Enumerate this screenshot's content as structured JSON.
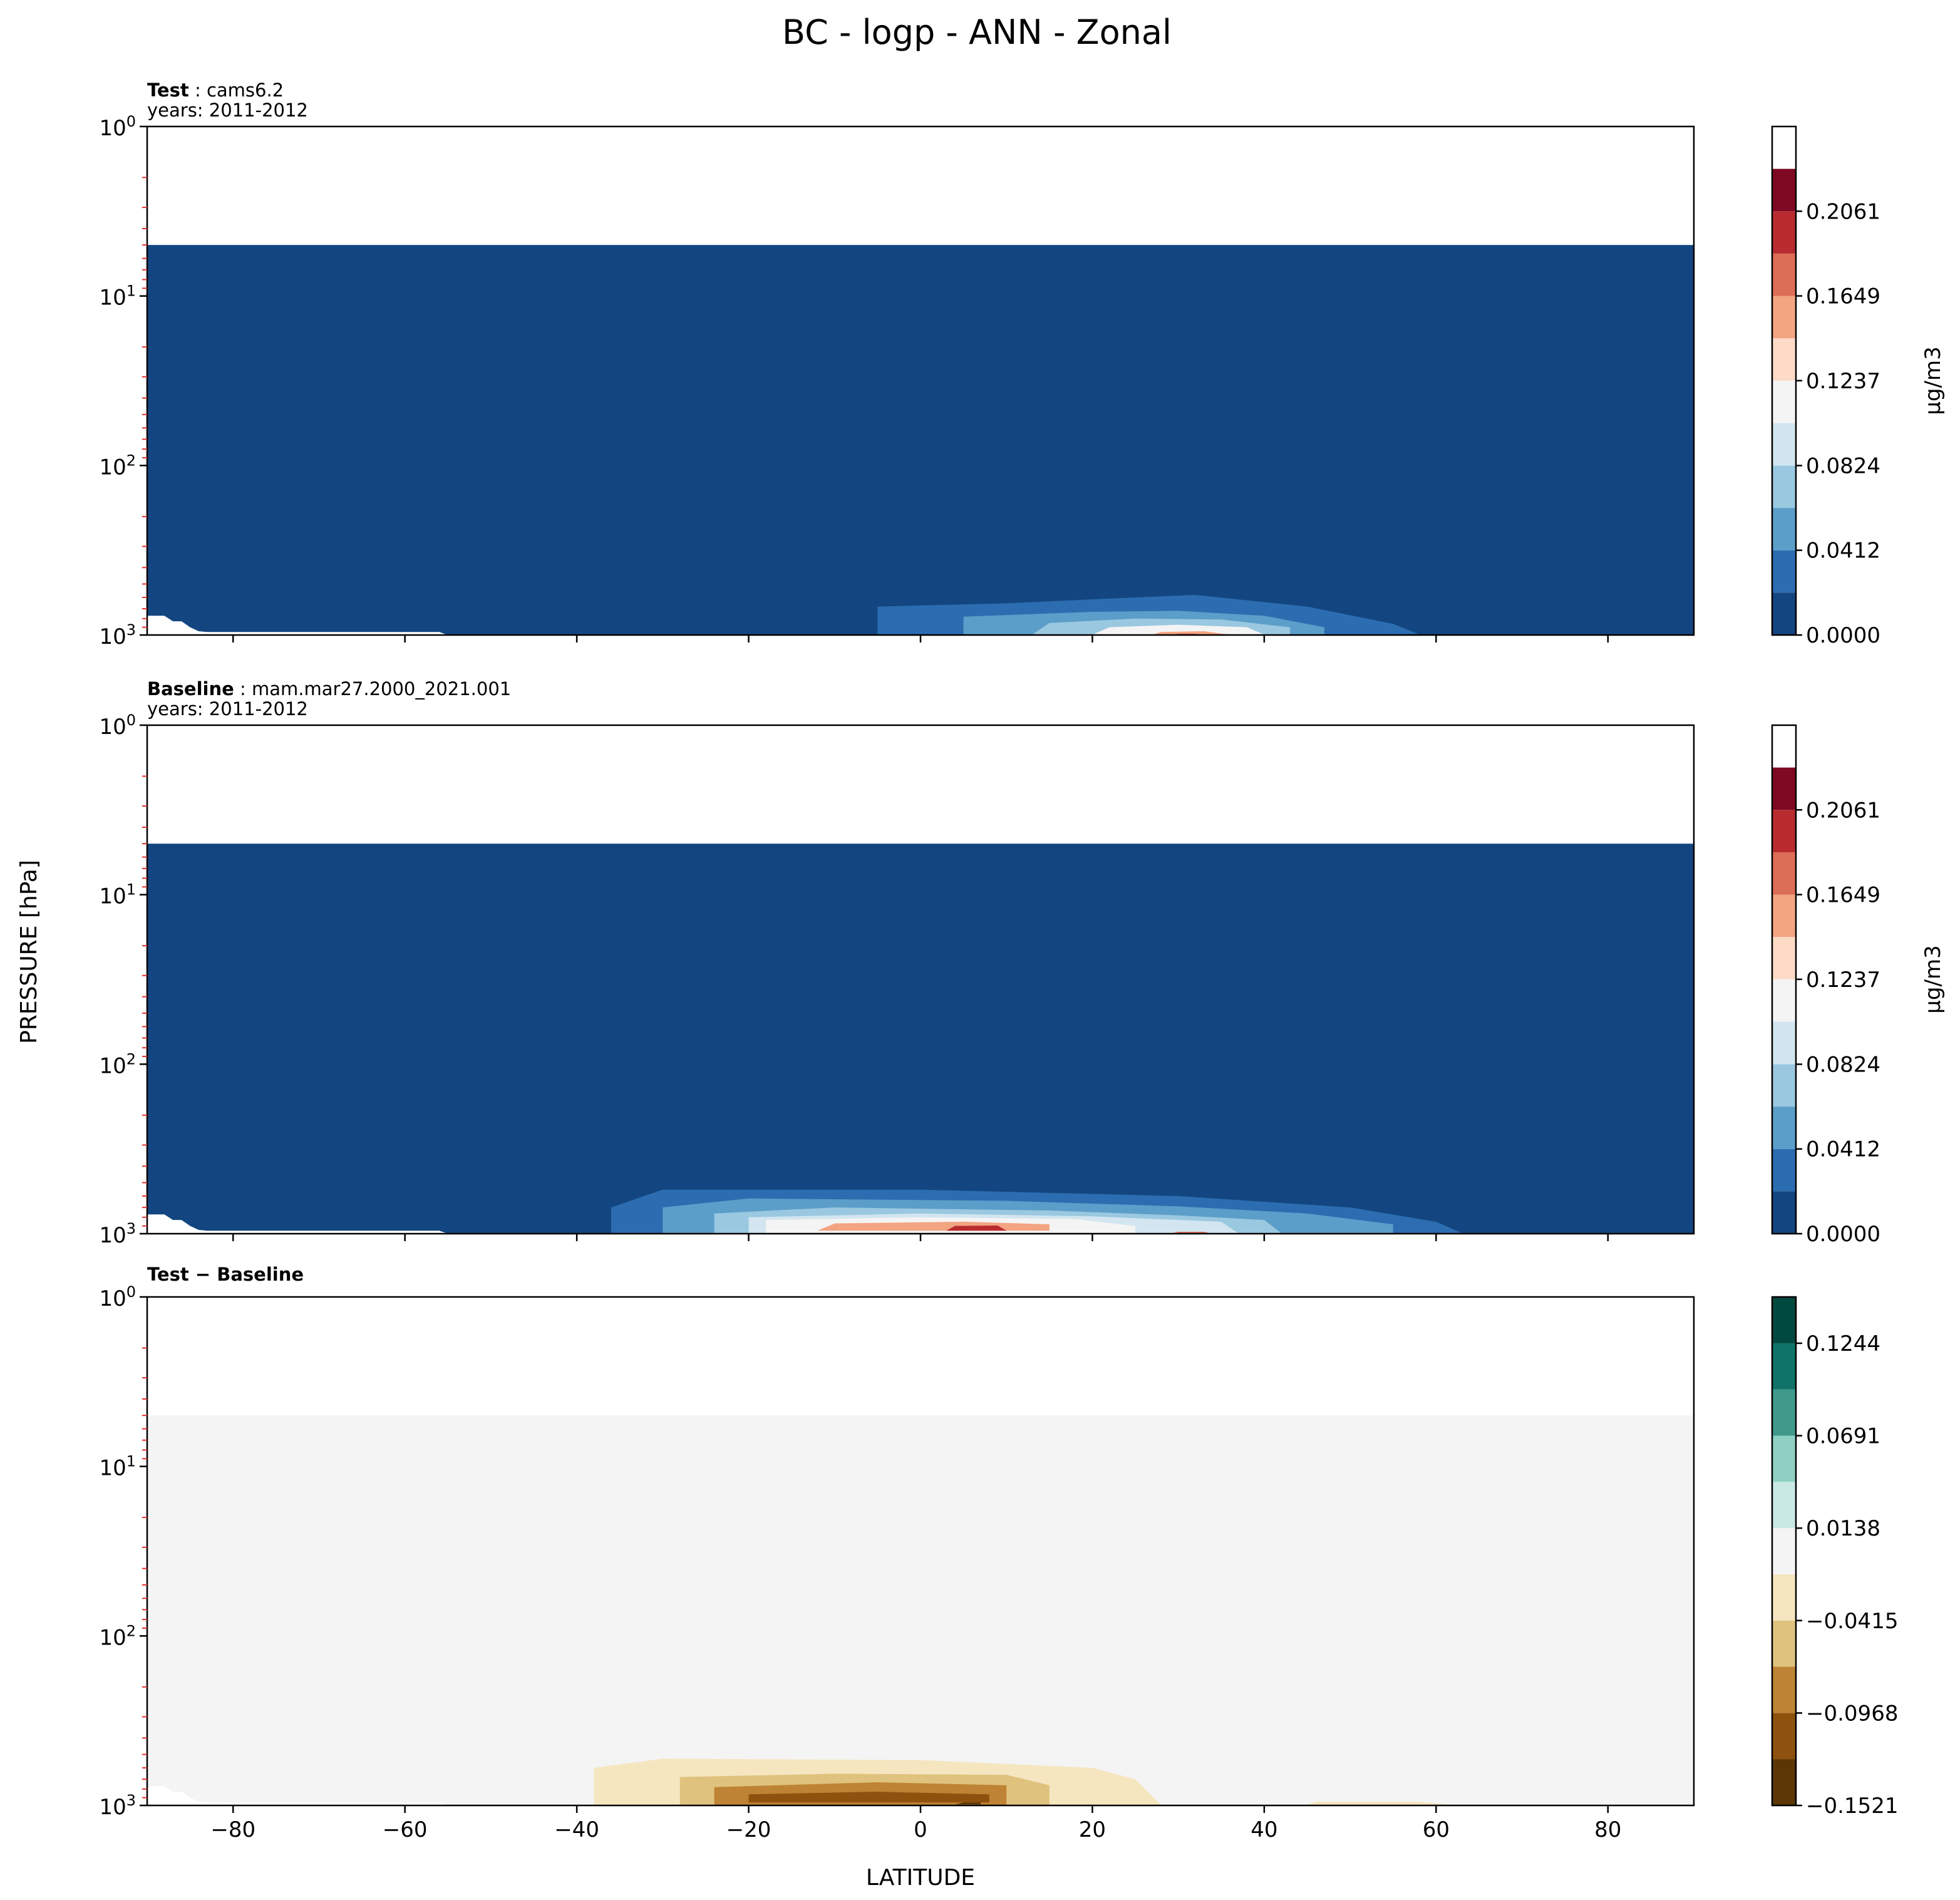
{
  "figure": {
    "title": "BC - logp - ANN - Zonal",
    "xlabel": "LATITUDE",
    "ylabel": "PRESSURE [hPa]"
  },
  "chart_data": [
    {
      "type": "heatmap",
      "panel_label_bold": "Test",
      "panel_label_rest": ": cams6.2",
      "subtitle": "years: 2011-2012",
      "x_ticks": [
        -80,
        -60,
        -40,
        -20,
        0,
        20,
        40,
        60,
        80
      ],
      "xlim": [
        -90,
        90
      ],
      "y_ticks": [
        "10^0",
        "10^1",
        "10^2",
        "10^3"
      ],
      "ylim": [
        1000,
        1
      ],
      "y_scale": "log",
      "show_xtick_labels": false,
      "colorbar_label": "μg/m3",
      "colorbar_ticks": [
        "0.0000",
        "0.0412",
        "0.0824",
        "0.1237",
        "0.1649",
        "0.2061"
      ],
      "colorbar_levels": [
        0.0,
        0.0206,
        0.0412,
        0.0618,
        0.0824,
        0.1031,
        0.1237,
        0.1443,
        0.1649,
        0.1855,
        0.2061,
        0.2267,
        0.2473
      ],
      "colorbar_colors": [
        "#134680",
        "#2c6db1",
        "#5b9ec9",
        "#9ac8e0",
        "#d2e5f0",
        "#f4f4f4",
        "#fddbc7",
        "#f3a481",
        "#dc6d57",
        "#b82b2e",
        "#7f0823"
      ],
      "background_color": "#134680",
      "data_top_pressure_hPa": 5,
      "contours": [
        {
          "level": 1,
          "color": "#2c6db1",
          "points": [
            [
              -5,
              990
            ],
            [
              -5,
              680
            ],
            [
              10,
              650
            ],
            [
              25,
              600
            ],
            [
              32,
              580
            ],
            [
              45,
              680
            ],
            [
              55,
              860
            ],
            [
              58,
              990
            ]
          ]
        },
        {
          "level": 2,
          "color": "#5b9ec9",
          "points": [
            [
              5,
              995
            ],
            [
              5,
              780
            ],
            [
              20,
              730
            ],
            [
              30,
              720
            ],
            [
              40,
              770
            ],
            [
              47,
              900
            ],
            [
              47,
              995
            ]
          ]
        },
        {
          "level": 3,
          "color": "#9ac8e0",
          "points": [
            [
              13,
              995
            ],
            [
              15,
              850
            ],
            [
              25,
              800
            ],
            [
              35,
              810
            ],
            [
              43,
              900
            ],
            [
              43,
              995
            ]
          ]
        },
        {
          "level": 5,
          "color": "#f4f4f4",
          "points": [
            [
              20,
              995
            ],
            [
              22,
              900
            ],
            [
              30,
              870
            ],
            [
              38,
              900
            ],
            [
              40,
              995
            ]
          ]
        },
        {
          "level": 7,
          "color": "#f3a481",
          "points": [
            [
              27,
              995
            ],
            [
              28,
              960
            ],
            [
              33,
              950
            ],
            [
              36,
              995
            ]
          ]
        },
        {
          "level": 9,
          "color": "#b82b2e",
          "points": [
            [
              29,
              1000
            ],
            [
              30,
              985
            ],
            [
              32,
              985
            ],
            [
              33,
              1000
            ]
          ]
        }
      ]
    },
    {
      "type": "heatmap",
      "panel_label_bold": "Baseline",
      "panel_label_rest": ": mam.mar27.2000_2021.001",
      "subtitle": "years: 2011-2012",
      "x_ticks": [
        -80,
        -60,
        -40,
        -20,
        0,
        20,
        40,
        60,
        80
      ],
      "xlim": [
        -90,
        90
      ],
      "y_ticks": [
        "10^0",
        "10^1",
        "10^2",
        "10^3"
      ],
      "ylim": [
        1000,
        1
      ],
      "y_scale": "log",
      "show_xtick_labels": false,
      "colorbar_label": "μg/m3",
      "colorbar_ticks": [
        "0.0000",
        "0.0412",
        "0.0824",
        "0.1237",
        "0.1649",
        "0.2061"
      ],
      "colorbar_levels": [
        0.0,
        0.0206,
        0.0412,
        0.0618,
        0.0824,
        0.1031,
        0.1237,
        0.1443,
        0.1649,
        0.1855,
        0.2061,
        0.2267,
        0.2473
      ],
      "colorbar_colors": [
        "#134680",
        "#2c6db1",
        "#5b9ec9",
        "#9ac8e0",
        "#d2e5f0",
        "#f4f4f4",
        "#fddbc7",
        "#f3a481",
        "#dc6d57",
        "#b82b2e",
        "#7f0823"
      ],
      "background_color": "#134680",
      "data_top_pressure_hPa": 5,
      "contours": [
        {
          "level": 1,
          "color": "#2c6db1",
          "points": [
            [
              -36,
              990
            ],
            [
              -36,
              700
            ],
            [
              -30,
              550
            ],
            [
              0,
              550
            ],
            [
              30,
              600
            ],
            [
              50,
              700
            ],
            [
              60,
              850
            ],
            [
              63,
              990
            ]
          ]
        },
        {
          "level": 2,
          "color": "#5b9ec9",
          "points": [
            [
              -30,
              995
            ],
            [
              -30,
              700
            ],
            [
              -20,
              620
            ],
            [
              10,
              640
            ],
            [
              30,
              690
            ],
            [
              45,
              760
            ],
            [
              55,
              880
            ],
            [
              55,
              995
            ]
          ]
        },
        {
          "level": 3,
          "color": "#9ac8e0",
          "points": [
            [
              -24,
              995
            ],
            [
              -24,
              760
            ],
            [
              -10,
              700
            ],
            [
              15,
              730
            ],
            [
              30,
              780
            ],
            [
              40,
              830
            ],
            [
              42,
              995
            ]
          ]
        },
        {
          "level": 4,
          "color": "#d2e5f0",
          "points": [
            [
              -20,
              995
            ],
            [
              -20,
              800
            ],
            [
              0,
              760
            ],
            [
              20,
              790
            ],
            [
              35,
              850
            ],
            [
              37,
              995
            ]
          ]
        },
        {
          "level": 5,
          "color": "#f4f4f4",
          "points": [
            [
              -18,
              995
            ],
            [
              -18,
              830
            ],
            [
              0,
              800
            ],
            [
              18,
              820
            ],
            [
              25,
              900
            ],
            [
              25,
              995
            ]
          ]
        },
        {
          "level": 7,
          "color": "#f3a481",
          "points": [
            [
              -12,
              960
            ],
            [
              -10,
              870
            ],
            [
              5,
              850
            ],
            [
              15,
              880
            ],
            [
              15,
              960
            ]
          ]
        },
        {
          "level": 9,
          "color": "#b82b2e",
          "points": [
            [
              3,
              960
            ],
            [
              4,
              900
            ],
            [
              9,
              895
            ],
            [
              10,
              960
            ]
          ]
        },
        {
          "level": 8,
          "color": "#dc6d57",
          "points": [
            [
              29,
              1000
            ],
            [
              30,
              975
            ],
            [
              33,
              975
            ],
            [
              34,
              1000
            ]
          ]
        }
      ]
    },
    {
      "type": "heatmap",
      "panel_label_bold": "Test − Baseline",
      "panel_label_rest": "",
      "subtitle": "",
      "x_ticks": [
        -80,
        -60,
        -40,
        -20,
        0,
        20,
        40,
        60,
        80
      ],
      "xlim": [
        -90,
        90
      ],
      "y_ticks": [
        "10^0",
        "10^1",
        "10^2",
        "10^3"
      ],
      "ylim": [
        1000,
        1
      ],
      "y_scale": "log",
      "show_xtick_labels": true,
      "colorbar_label": "",
      "colorbar_ticks": [
        "−0.1521",
        "−0.0968",
        "−0.0415",
        "0.0138",
        "0.0691",
        "0.1244"
      ],
      "colorbar_levels": [
        -0.1521,
        -0.1244,
        -0.0968,
        -0.0691,
        -0.0415,
        -0.0138,
        0.0138,
        0.0415,
        0.0691,
        0.0968,
        0.1244,
        0.1521
      ],
      "colorbar_colors": [
        "#5a3705",
        "#8f520e",
        "#be8334",
        "#dfc27d",
        "#f5e6c0",
        "#f4f4f4",
        "#c9eae4",
        "#8ed0c2",
        "#3f9a8c",
        "#107369",
        "#00493f"
      ],
      "background_color": "#f4f4f4",
      "data_top_pressure_hPa": 5,
      "contours": [
        {
          "level": 4,
          "color": "#f5e6c0",
          "points": [
            [
              -38,
              995
            ],
            [
              -38,
              600
            ],
            [
              -30,
              530
            ],
            [
              0,
              540
            ],
            [
              20,
              600
            ],
            [
              25,
              700
            ],
            [
              28,
              995
            ]
          ]
        },
        {
          "level": 3,
          "color": "#dfc27d",
          "points": [
            [
              -28,
              995
            ],
            [
              -28,
              680
            ],
            [
              -10,
              650
            ],
            [
              10,
              660
            ],
            [
              15,
              760
            ],
            [
              15,
              995
            ]
          ]
        },
        {
          "level": 2,
          "color": "#be8334",
          "points": [
            [
              -24,
              995
            ],
            [
              -24,
              780
            ],
            [
              -5,
              730
            ],
            [
              10,
              760
            ],
            [
              10,
              995
            ]
          ]
        },
        {
          "level": 1,
          "color": "#8f520e",
          "points": [
            [
              -20,
              960
            ],
            [
              -20,
              860
            ],
            [
              -5,
              830
            ],
            [
              8,
              860
            ],
            [
              8,
              960
            ]
          ]
        },
        {
          "level": 0,
          "color": "#5a3705",
          "points": [
            [
              4,
              985
            ],
            [
              5,
              960
            ],
            [
              7,
              960
            ],
            [
              7,
              985
            ]
          ]
        },
        {
          "level": 4,
          "color": "#f5e6c0",
          "points": [
            [
              45,
              995
            ],
            [
              46,
              950
            ],
            [
              58,
              950
            ],
            [
              62,
              995
            ]
          ]
        }
      ]
    }
  ]
}
